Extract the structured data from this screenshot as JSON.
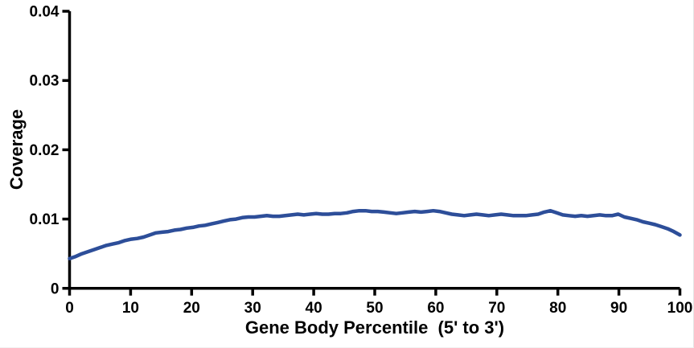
{
  "chart_data": {
    "type": "line",
    "title": "",
    "xlabel": "Gene Body Percentile  (5' to 3')",
    "ylabel": "Coverage",
    "xlim": [
      0,
      100
    ],
    "ylim": [
      0,
      0.04
    ],
    "grid": false,
    "legend": "none",
    "background_color": "#ffffff",
    "axis_color": "#000000",
    "tick_label_color": "#000000",
    "xticks": {
      "values": [
        0,
        10,
        20,
        30,
        40,
        50,
        60,
        70,
        80,
        90,
        100
      ],
      "labels": [
        "0",
        "10",
        "20",
        "30",
        "40",
        "50",
        "60",
        "70",
        "80",
        "90",
        "100"
      ]
    },
    "yticks": {
      "values": [
        0,
        0.01,
        0.02,
        0.03,
        0.04
      ],
      "labels": [
        "0",
        "0.01",
        "0.02",
        "0.03",
        "0.04"
      ]
    },
    "series": [
      {
        "name": "Coverage",
        "color": "#2d4e99",
        "line_width": 4.5,
        "marker": "none",
        "x": [
          1,
          2,
          3,
          4,
          5,
          6,
          7,
          8,
          9,
          10,
          11,
          12,
          13,
          14,
          15,
          16,
          17,
          18,
          19,
          20,
          21,
          22,
          23,
          24,
          25,
          26,
          27,
          28,
          29,
          30,
          31,
          32,
          33,
          34,
          35,
          36,
          37,
          38,
          39,
          40,
          41,
          42,
          43,
          44,
          45,
          46,
          47,
          48,
          49,
          50,
          51,
          52,
          53,
          54,
          55,
          56,
          57,
          58,
          59,
          60,
          61,
          62,
          63,
          64,
          65,
          66,
          67,
          68,
          69,
          70,
          71,
          72,
          73,
          74,
          75,
          76,
          77,
          78,
          79,
          80,
          81,
          82,
          83,
          84,
          85,
          86,
          87,
          88,
          89,
          90,
          91,
          92,
          93,
          94,
          95,
          96,
          97,
          98,
          99,
          100
        ],
        "y": [
          0.0043,
          0.0046,
          0.005,
          0.0053,
          0.0056,
          0.0059,
          0.0062,
          0.0064,
          0.0066,
          0.0069,
          0.0071,
          0.0072,
          0.0074,
          0.0077,
          0.008,
          0.0081,
          0.0082,
          0.0084,
          0.0085,
          0.0087,
          0.0088,
          0.009,
          0.0091,
          0.0093,
          0.0095,
          0.0097,
          0.0099,
          0.01,
          0.0102,
          0.0103,
          0.0103,
          0.0104,
          0.0105,
          0.0104,
          0.0104,
          0.0105,
          0.0106,
          0.0107,
          0.0106,
          0.0107,
          0.0108,
          0.0107,
          0.0107,
          0.0108,
          0.0108,
          0.0109,
          0.0111,
          0.0112,
          0.0112,
          0.0111,
          0.0111,
          0.011,
          0.0109,
          0.0108,
          0.0109,
          0.011,
          0.0111,
          0.011,
          0.0111,
          0.0112,
          0.0111,
          0.0109,
          0.0107,
          0.0106,
          0.0105,
          0.0106,
          0.0107,
          0.0106,
          0.0105,
          0.0106,
          0.0107,
          0.0106,
          0.0105,
          0.0105,
          0.0105,
          0.0106,
          0.0107,
          0.011,
          0.0112,
          0.0109,
          0.0106,
          0.0105,
          0.0104,
          0.0105,
          0.0104,
          0.0105,
          0.0106,
          0.0105,
          0.0105,
          0.0107,
          0.0103,
          0.0101,
          0.0099,
          0.0096,
          0.0094,
          0.0092,
          0.0089,
          0.0086,
          0.0082,
          0.0077
        ]
      }
    ]
  }
}
